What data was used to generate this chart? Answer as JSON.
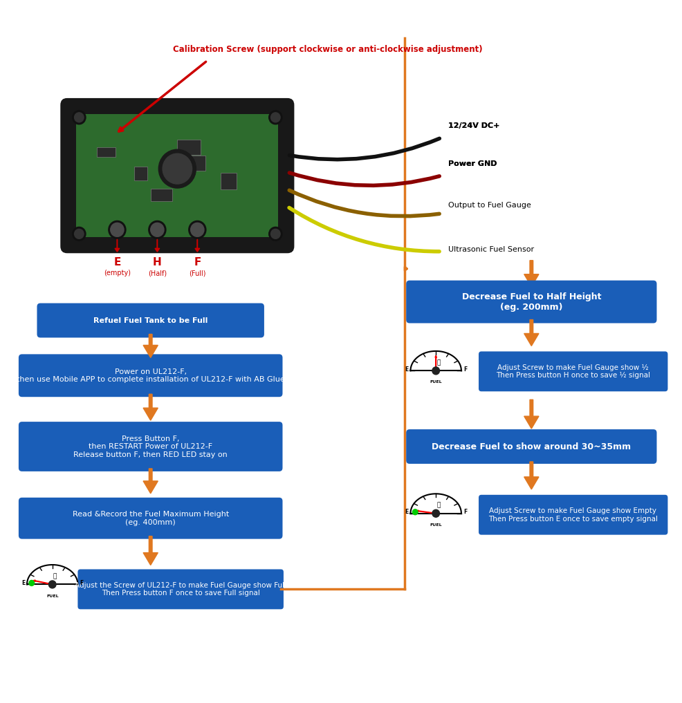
{
  "bg_color": "#ffffff",
  "calibration_text": "Calibration Screw (support clockwise or anti-clockwise adjustment)",
  "wire_labels": [
    "12/24V DC+",
    "Power GND",
    "Output to Fuel Gauge",
    "Ultrasonic Fuel Sensor"
  ],
  "button_labels": [
    "E",
    "H",
    "F"
  ],
  "button_sublabels": [
    "(empty)",
    "(Half)",
    "(Full)"
  ],
  "left_flow": [
    {
      "text": "Refuel Fuel Tank to be Full",
      "bold": true
    },
    {
      "text": "Power on UL212-F,\nthen use Mobile APP to complete installation of UL212-F with AB Glue",
      "bold": false
    },
    {
      "text": "Press Button F,\nthen RESTART Power of UL212-F\nRelease button F, then RED LED stay on",
      "bold": false
    },
    {
      "text": "Read &Record the Fuel Maximum Height\n(eg. 400mm)",
      "bold": false
    }
  ],
  "right_flow_headers": [
    {
      "text": "Decrease Fuel to Half Height\n(eg. 200mm)",
      "bold": true
    },
    {
      "text": "Decrease Fuel to show around 30~35mm",
      "bold": true
    }
  ],
  "right_flow_notes": [
    {
      "text": "Adjust Screw to make Fuel Gauge show ½\nThen Press button H once to save ½ signal"
    },
    {
      "text": "Adjust Screw to make Fuel Gauge show Empty\nThen Press button E once to save empty signal"
    }
  ],
  "bottom_left_note": "Adjust the Screw of UL212-F to make Fuel Gauge show Full\nThen Press button F once to save Full signal",
  "box_color": "#1a5eb8",
  "box_text_color": "#ffffff",
  "arrow_color": "#e07820",
  "red_color": "#cc0000"
}
